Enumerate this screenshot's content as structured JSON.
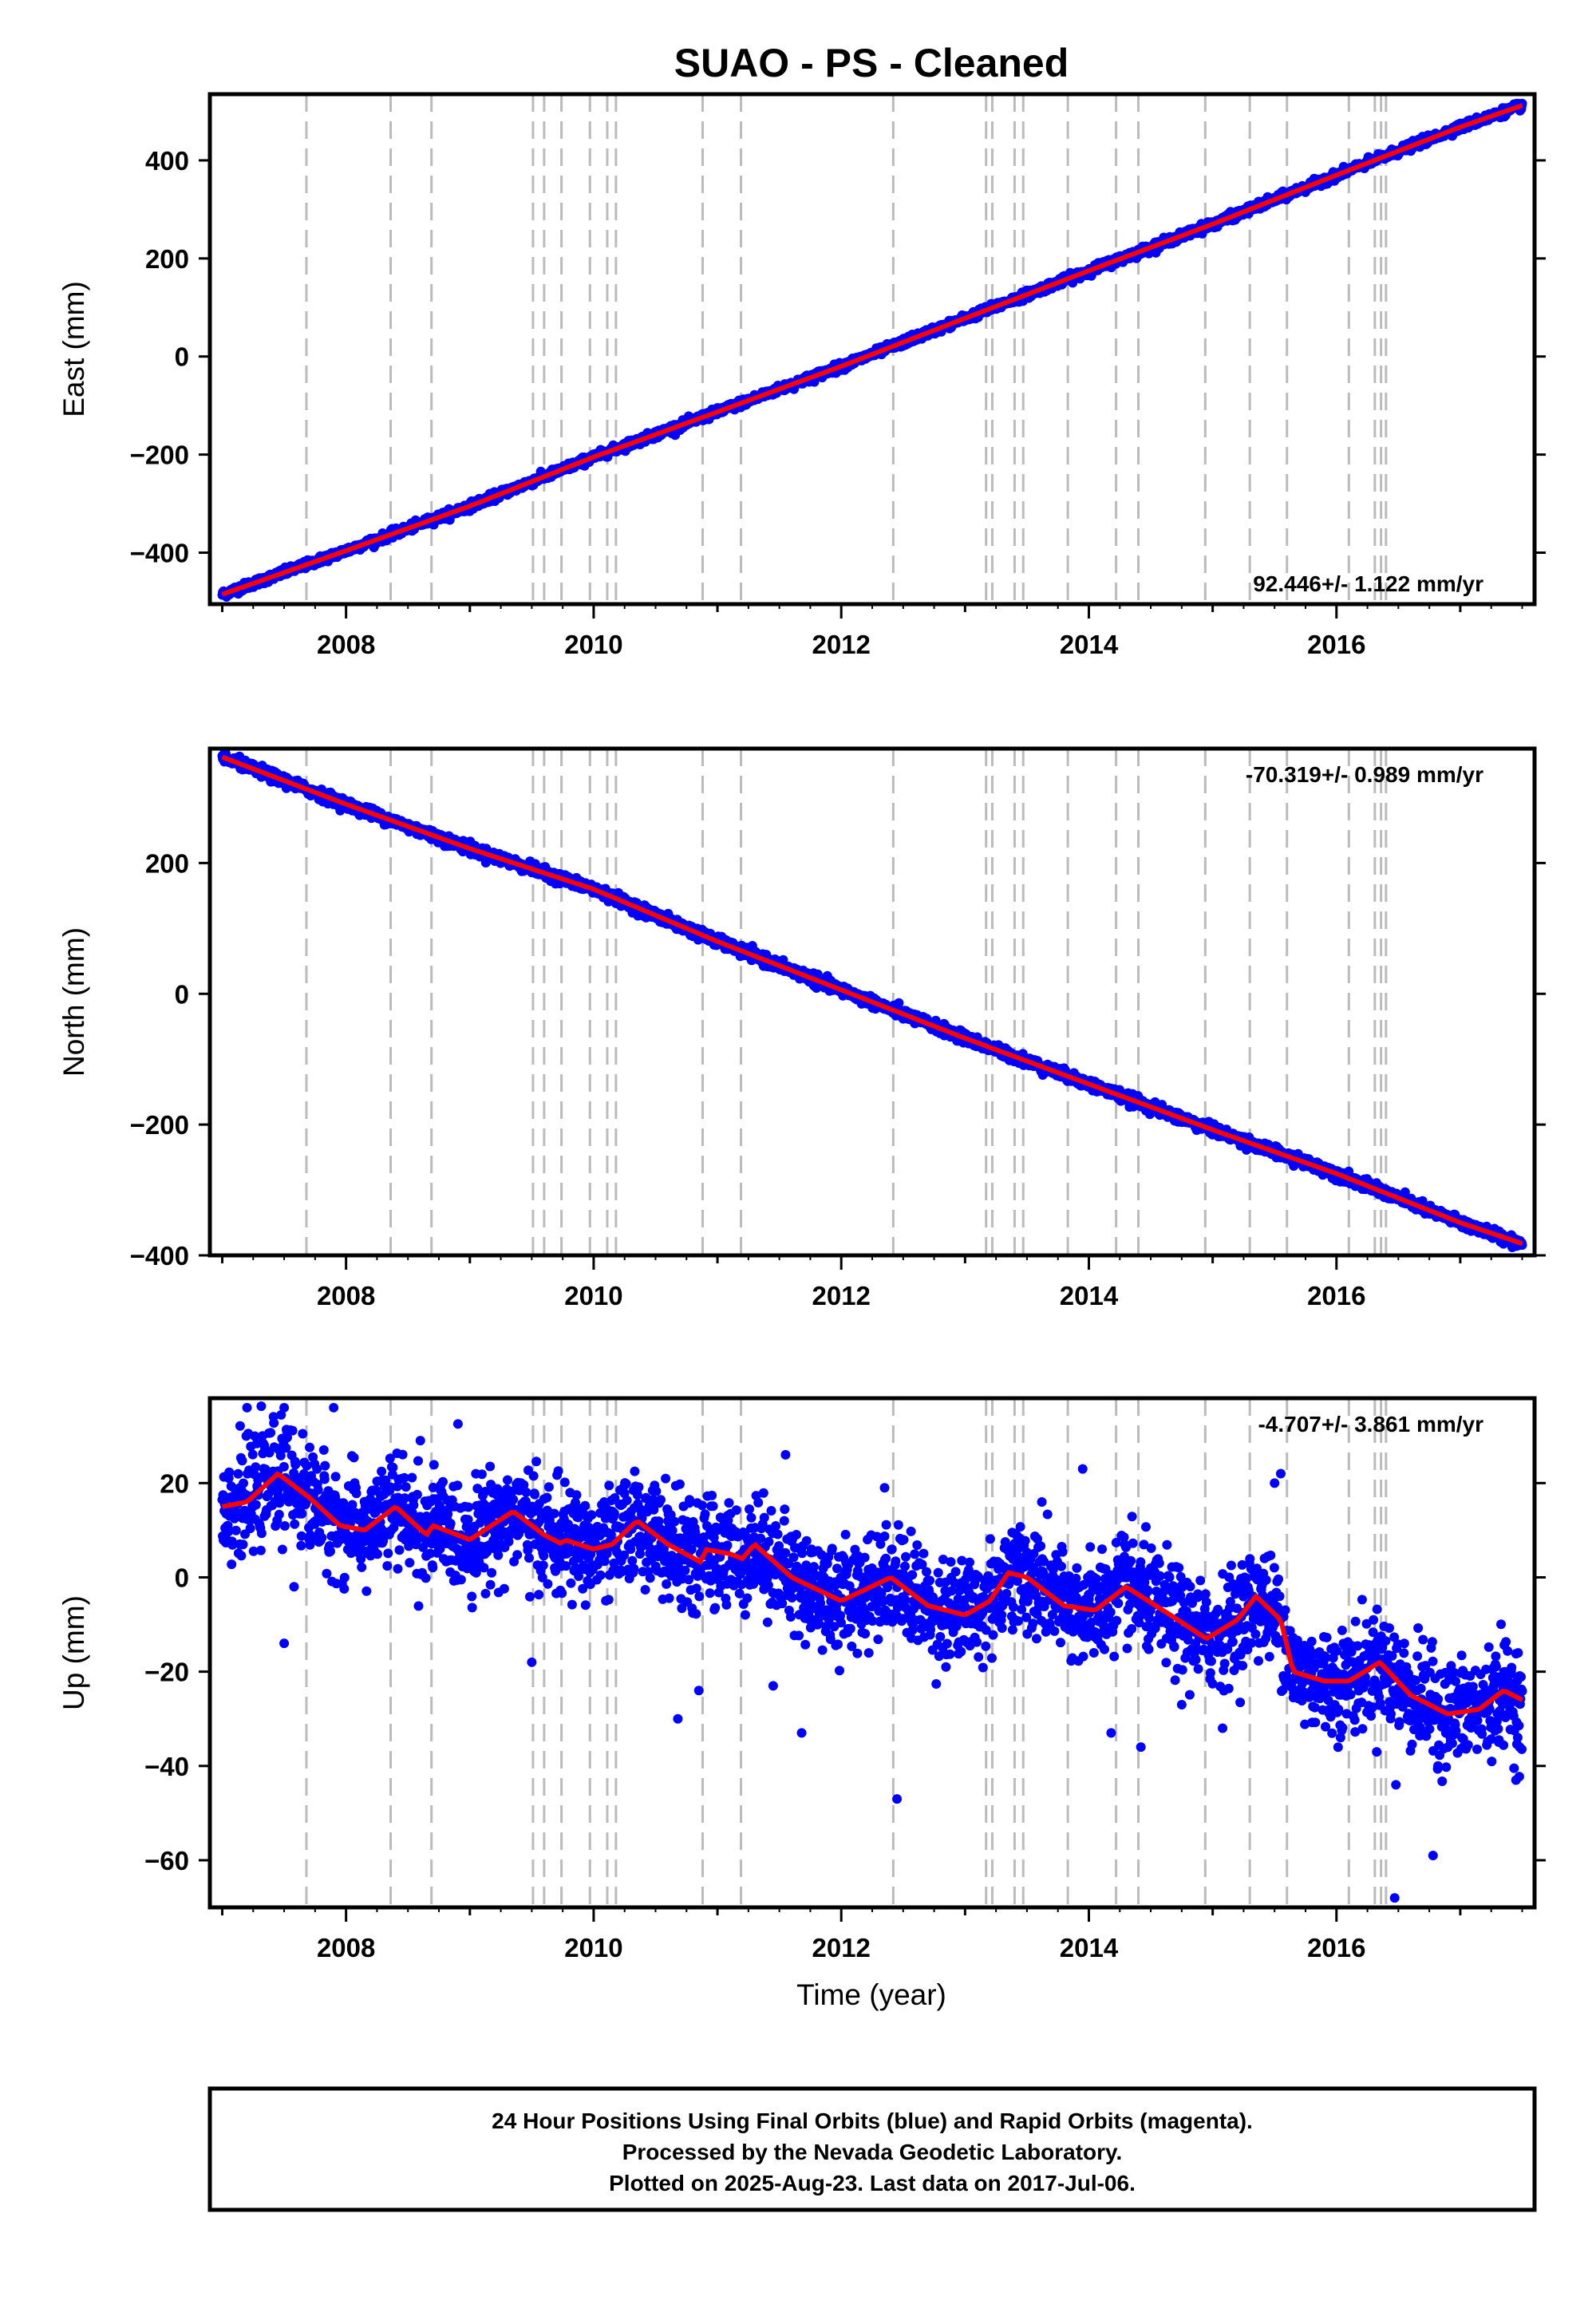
{
  "title": "SUAO  - PS - Cleaned",
  "colors": {
    "final_orbit_points": "#0000ff",
    "model_fit": "#ff0000",
    "event_lines": "#bbbbbb",
    "frame": "#000000"
  },
  "xlabel": "Time (year)",
  "x_ticks": [
    2008,
    2010,
    2012,
    2014,
    2016
  ],
  "x_range": [
    2006.9,
    2017.6
  ],
  "event_lines": [
    2007.68,
    2008.36,
    2008.69,
    2009.51,
    2009.6,
    2009.74,
    2009.97,
    2010.11,
    2010.18,
    2010.88,
    2011.19,
    2012.42,
    2013.17,
    2013.22,
    2013.4,
    2013.47,
    2013.83,
    2014.22,
    2014.4,
    2014.94,
    2015.3,
    2015.6,
    2016.1,
    2016.31,
    2016.36,
    2016.4
  ],
  "chart_data": [
    {
      "type": "scatter",
      "name": "east",
      "ylabel": "East (mm)",
      "ylim": [
        -505,
        535
      ],
      "y_ticks": [
        -400,
        -200,
        0,
        200,
        400
      ],
      "rate_label": "92.446+/- 1.122 mm/yr",
      "rate_position": "bottom-right",
      "x_range_data": [
        2007.0,
        2017.5
      ],
      "y_start": -485,
      "y_end": 512,
      "scatter_sigma": 4,
      "fit_points": [
        [
          2007.0,
          -485
        ],
        [
          2008.0,
          -396
        ],
        [
          2009.0,
          -305
        ],
        [
          2010.0,
          -205
        ],
        [
          2011.0,
          -113
        ],
        [
          2012.0,
          -20
        ],
        [
          2013.0,
          78
        ],
        [
          2014.0,
          175
        ],
        [
          2015.0,
          270
        ],
        [
          2016.0,
          370
        ],
        [
          2017.0,
          468
        ],
        [
          2017.5,
          512
        ]
      ]
    },
    {
      "type": "scatter",
      "name": "north",
      "ylabel": "North (mm)",
      "ylim": [
        -400,
        375
      ],
      "y_ticks": [
        -400,
        -200,
        0,
        200
      ],
      "rate_label": "-70.319+/- 0.989 mm/yr",
      "rate_position": "top-right",
      "x_range_data": [
        2007.0,
        2017.5
      ],
      "y_start": 362,
      "y_end": -382,
      "scatter_sigma": 4,
      "fit_points": [
        [
          2007.0,
          362
        ],
        [
          2008.0,
          290
        ],
        [
          2009.0,
          222
        ],
        [
          2010.0,
          160
        ],
        [
          2011.0,
          80
        ],
        [
          2012.0,
          6
        ],
        [
          2013.0,
          -68
        ],
        [
          2014.0,
          -138
        ],
        [
          2015.0,
          -208
        ],
        [
          2016.0,
          -275
        ],
        [
          2017.0,
          -350
        ],
        [
          2017.5,
          -382
        ]
      ]
    },
    {
      "type": "scatter",
      "name": "up",
      "ylabel": "Up (mm)",
      "ylim": [
        -70,
        38
      ],
      "y_ticks": [
        -60,
        -40,
        -20,
        0,
        20
      ],
      "rate_label": "-4.707+/- 3.861 mm/yr",
      "rate_position": "top-right",
      "x_range_data": [
        2007.0,
        2017.5
      ],
      "scatter_sigma": 5.5,
      "fit_points": [
        [
          2007.0,
          15
        ],
        [
          2007.2,
          16
        ],
        [
          2007.45,
          22
        ],
        [
          2007.7,
          17
        ],
        [
          2007.95,
          11
        ],
        [
          2008.15,
          10
        ],
        [
          2008.4,
          15
        ],
        [
          2008.65,
          9
        ],
        [
          2008.7,
          11
        ],
        [
          2009.0,
          8
        ],
        [
          2009.35,
          14
        ],
        [
          2009.6,
          9
        ],
        [
          2009.75,
          7
        ],
        [
          2009.76,
          8
        ],
        [
          2010.0,
          6
        ],
        [
          2010.15,
          7
        ],
        [
          2010.35,
          12
        ],
        [
          2010.6,
          7
        ],
        [
          2010.88,
          3
        ],
        [
          2010.89,
          6
        ],
        [
          2011.1,
          5
        ],
        [
          2011.2,
          4
        ],
        [
          2011.3,
          7
        ],
        [
          2011.6,
          0
        ],
        [
          2012.0,
          -5
        ],
        [
          2012.4,
          0
        ],
        [
          2012.7,
          -6
        ],
        [
          2013.0,
          -8
        ],
        [
          2013.2,
          -5
        ],
        [
          2013.35,
          1
        ],
        [
          2013.5,
          0
        ],
        [
          2013.8,
          -6
        ],
        [
          2014.05,
          -7
        ],
        [
          2014.3,
          -2
        ],
        [
          2014.6,
          -7
        ],
        [
          2014.95,
          -13
        ],
        [
          2015.2,
          -9
        ],
        [
          2015.35,
          -4
        ],
        [
          2015.55,
          -9
        ],
        [
          2015.65,
          -20
        ],
        [
          2015.9,
          -22
        ],
        [
          2016.1,
          -22
        ],
        [
          2016.35,
          -18
        ],
        [
          2016.6,
          -25
        ],
        [
          2016.9,
          -29
        ],
        [
          2017.15,
          -28
        ],
        [
          2017.35,
          -24
        ],
        [
          2017.5,
          -26
        ]
      ],
      "outliers": [
        [
          2007.2,
          36
        ],
        [
          2007.5,
          36
        ],
        [
          2007.9,
          36
        ],
        [
          2007.5,
          -14
        ],
        [
          2007.58,
          -2
        ],
        [
          2008.6,
          29
        ],
        [
          2009.5,
          -18
        ],
        [
          2010.68,
          -30
        ],
        [
          2010.85,
          -24
        ],
        [
          2011.45,
          -23
        ],
        [
          2011.68,
          -33
        ],
        [
          2011.55,
          26
        ],
        [
          2012.45,
          -47
        ],
        [
          2013.95,
          23
        ],
        [
          2014.18,
          -33
        ],
        [
          2014.42,
          -36
        ],
        [
          2014.75,
          -27
        ],
        [
          2015.08,
          -32
        ],
        [
          2015.5,
          20
        ],
        [
          2015.55,
          22
        ],
        [
          2016.48,
          -44
        ],
        [
          2016.78,
          -59
        ],
        [
          2016.82,
          -40
        ],
        [
          2016.47,
          -68
        ],
        [
          2017.45,
          -43
        ],
        [
          2017.48,
          -36
        ],
        [
          2012.35,
          19
        ],
        [
          2013.62,
          16
        ]
      ]
    }
  ],
  "footer": {
    "line1": "24 Hour Positions Using Final Orbits (blue) and Rapid Orbits (magenta).",
    "line2": "Processed by the Nevada Geodetic Laboratory.",
    "line3": "Plotted on 2025-Aug-23. Last data on 2017-Jul-06."
  }
}
